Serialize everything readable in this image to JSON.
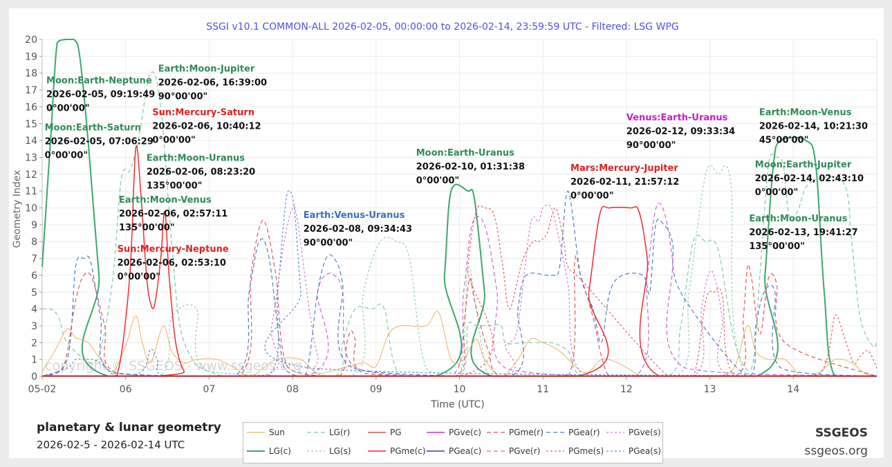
{
  "footer": {
    "title": "planetary & lunar geometry",
    "dates": "2026-02-5 - 2026-02-14 UTC",
    "brand": "SSGEOS",
    "site": "ssgeos.org"
  },
  "watermark": "copyright © SSGEOS - www.ssgeos.org",
  "colors": {
    "Sun": "#f0b25c",
    "LG(c)": "#3aa76d",
    "LG(r)": "#7ecaa5",
    "LG(s)": "#8fd0b2",
    "PG": "#d9534f",
    "PGme(c)": "#ee2a2a",
    "PGve(c)": "#cc33cc",
    "PGea(c)": "#3a3ab0",
    "PGme(r)": "#e05555",
    "PGve(r)": "#cc66cc",
    "PGea(r)": "#4a7fbf",
    "PGme(s)": "#e06060",
    "PGve(s)": "#d47ad4",
    "PGea(s)": "#5a8ed0"
  },
  "chart_data": {
    "type": "line",
    "title": "SSGI v10.1 COMMON-ALL 2026-02-05, 00:00:00 to 2026-02-14, 23:59:59 UTC - Filtered: LSG WPG",
    "xlabel": "Time (UTC)",
    "ylabel": "Geometry Index",
    "xlim": [
      5,
      15
    ],
    "ylim": [
      0,
      20
    ],
    "x_ticks": [
      {
        "v": 5,
        "label": "05-02"
      },
      {
        "v": 6,
        "label": "06"
      },
      {
        "v": 7,
        "label": "07"
      },
      {
        "v": 8,
        "label": "08"
      },
      {
        "v": 9,
        "label": "09"
      },
      {
        "v": 10,
        "label": "10"
      },
      {
        "v": 11,
        "label": "11"
      },
      {
        "v": 12,
        "label": "12"
      },
      {
        "v": 13,
        "label": "13"
      },
      {
        "v": 14,
        "label": "14"
      }
    ],
    "y_ticks": [
      0,
      1,
      2,
      3,
      4,
      5,
      6,
      7,
      8,
      9,
      10,
      11,
      12,
      13,
      14,
      15,
      16,
      17,
      18,
      19,
      20
    ],
    "grid": true,
    "legend_position": "bottom",
    "legend": [
      "Sun",
      "LG(r)",
      "PG",
      "PGve(c)",
      "PGme(r)",
      "PGea(r)",
      "PGve(s)",
      "LG(c)",
      "LG(s)",
      "PGme(c)",
      "PGea(c)",
      "PGve(r)",
      "PGme(s)",
      "PGea(s)"
    ],
    "series": [
      {
        "name": "LG(c)",
        "dash": "",
        "width": 2,
        "x": [
          5.0,
          5.1,
          5.18,
          5.28,
          5.38,
          5.45,
          5.55,
          5.68,
          5.8,
          9.7,
          9.82,
          9.9,
          10.1,
          10.18,
          10.3,
          10.4,
          13.55,
          13.66,
          13.76,
          13.85,
          14.15,
          14.27,
          14.37,
          14.5,
          15.0
        ],
        "y": [
          6.5,
          14,
          19.8,
          20,
          20,
          19,
          14,
          6,
          0,
          0,
          6,
          11,
          11,
          10.5,
          5,
          0,
          0,
          6,
          12.5,
          14,
          14,
          12.5,
          5,
          0,
          0
        ]
      },
      {
        "name": "LG(r)",
        "dash": "6,4",
        "width": 1.2,
        "x": [
          5.0,
          5.1,
          5.2,
          5.3,
          5.6,
          5.72,
          5.85,
          5.95,
          6.05,
          6.15,
          6.3,
          6.42,
          6.55,
          6.65,
          6.8,
          6.9,
          7.05,
          7.2,
          7.5,
          8.5,
          8.6,
          8.75,
          8.95,
          9.1,
          9.3,
          10.0,
          10.1,
          10.2,
          10.35,
          10.5,
          10.55,
          10.75,
          10.95,
          11.1,
          11.3,
          11.5,
          12.5,
          12.65,
          12.8,
          12.95,
          13.1,
          13.3,
          13.5,
          13.6,
          13.7,
          13.8,
          13.88,
          13.95,
          14.05,
          14.2,
          14.6,
          14.7,
          14.8,
          14.95,
          15.0
        ],
        "y": [
          4,
          4,
          3.5,
          2.0,
          0.8,
          2.0,
          6,
          11.8,
          12.2,
          14,
          18,
          16,
          8,
          3.0,
          1.0,
          0.5,
          0.2,
          0.0,
          0.0,
          0,
          2,
          4,
          4,
          4,
          0,
          0,
          3,
          3,
          3,
          3,
          2,
          2,
          2,
          2,
          1.5,
          0,
          0,
          3,
          8,
          8,
          7.5,
          2.0,
          0.5,
          6,
          12.5,
          13,
          12.5,
          9.5,
          9.8,
          11.5,
          11.5,
          8.0,
          3.5,
          1.8,
          2.0
        ]
      },
      {
        "name": "LG(s)",
        "dash": "3,3",
        "width": 1.2,
        "x": [
          5.0,
          5.3,
          6.4,
          6.55,
          6.85,
          7.0,
          8.7,
          8.85,
          9.05,
          9.25,
          9.4,
          9.6,
          10.0,
          10.1,
          10.2,
          10.35,
          10.6,
          10.9,
          11.2,
          12.6,
          12.75,
          12.95,
          13.1,
          13.25,
          13.45,
          15.0
        ],
        "y": [
          0,
          0,
          0,
          3.5,
          4,
          0.3,
          0,
          5,
          8,
          8,
          7,
          0.5,
          0,
          6.4,
          4,
          0,
          0,
          0,
          0,
          0,
          5,
          12,
          12,
          11.5,
          0,
          0
        ]
      },
      {
        "name": "Sun",
        "dash": "",
        "width": 1,
        "x": [
          5.0,
          5.15,
          5.3,
          5.4,
          5.55,
          5.7,
          5.85,
          6.0,
          6.12,
          6.2,
          6.3,
          6.45,
          6.55,
          6.7,
          6.85,
          7.1,
          7.3,
          7.5,
          7.8,
          8.1,
          8.3,
          8.6,
          8.85,
          9.0,
          9.15,
          9.3,
          9.6,
          9.75,
          9.9,
          10.05,
          10.2,
          10.3,
          10.5,
          10.7,
          10.85,
          11.0,
          11.2,
          11.5,
          11.7,
          11.9,
          12.2,
          12.5,
          12.8,
          13.1,
          13.3,
          13.45,
          13.55,
          13.7,
          13.9,
          14.1,
          14.3,
          14.5,
          14.7,
          14.85,
          15.0
        ],
        "y": [
          0.3,
          1.5,
          2.8,
          2.3,
          2.0,
          1.0,
          0.3,
          1.8,
          3.6,
          2.0,
          0.8,
          3.0,
          1.5,
          0.8,
          1.0,
          1.0,
          0.5,
          0.0,
          1.0,
          1.0,
          0.2,
          0.5,
          0.8,
          0.6,
          2.5,
          3.0,
          3.0,
          3.8,
          1.0,
          1.0,
          2.2,
          1.0,
          0.0,
          1.0,
          2.2,
          2.0,
          1.5,
          0.2,
          1.0,
          0.8,
          0.0,
          0.0,
          0.0,
          0.0,
          0.6,
          3.0,
          1.5,
          1.0,
          1.0,
          0.0,
          0.2,
          1.0,
          0.8,
          0.2,
          0.0
        ]
      },
      {
        "name": "PGme(c)",
        "dash": "",
        "width": 1.5,
        "x": [
          5.0,
          5.8,
          5.92,
          6.05,
          6.12,
          6.18,
          6.25,
          6.3,
          6.35,
          6.42,
          6.47,
          6.52,
          6.6,
          6.7,
          6.8,
          11.4,
          11.55,
          11.68,
          11.8,
          12.05,
          12.15,
          12.25,
          12.4,
          15.0
        ],
        "y": [
          0,
          0,
          0.5,
          6,
          13.5,
          11,
          6,
          4.3,
          4.3,
          7,
          9.8,
          6,
          2.0,
          0.3,
          0,
          0,
          5,
          9.6,
          10,
          10,
          9.8,
          7,
          0,
          0
        ]
      },
      {
        "name": "PGme(r)",
        "dash": "6,4",
        "width": 1.2,
        "x": [
          5.0,
          5.25,
          5.4,
          5.5,
          5.6,
          5.75,
          5.9,
          7.35,
          7.5,
          7.6,
          7.68,
          7.8,
          7.95,
          8.55,
          8.65,
          8.7,
          8.75,
          8.85,
          9.95,
          10.05,
          10.12,
          10.18,
          10.28,
          10.35,
          10.5,
          11.3,
          11.38,
          11.45,
          11.6,
          11.7,
          11.8,
          12.0,
          13.3,
          13.4,
          13.45,
          13.5,
          13.6,
          13.7,
          13.8,
          13.9,
          15.0
        ],
        "y": [
          0,
          0.5,
          4.5,
          6,
          5.8,
          3.0,
          0.2,
          0.0,
          6,
          8.8,
          9,
          6,
          0.5,
          0,
          2.0,
          2.7,
          2.2,
          0.2,
          0,
          3.0,
          5.8,
          4.5,
          2.5,
          1.5,
          0,
          0,
          6.8,
          6.0,
          3.5,
          1.2,
          0,
          0,
          0,
          3.5,
          6.5,
          5.8,
          2.5,
          5.8,
          5.5,
          2.0,
          0
        ]
      },
      {
        "name": "PGme(s)",
        "dash": "3,3",
        "width": 1.2,
        "x": [
          5.0,
          10.0,
          10.1,
          10.2,
          10.3,
          10.42,
          10.52,
          10.6,
          10.75,
          10.88,
          10.95,
          11.05,
          11.15,
          11.25,
          11.3,
          11.5,
          12.5,
          12.8,
          12.95,
          13.05,
          13.15,
          13.3,
          14.2,
          14.4,
          14.5,
          14.6,
          14.72,
          14.8,
          14.9,
          15.0
        ],
        "y": [
          0,
          0,
          6.5,
          9.8,
          10,
          9.5,
          6.5,
          4.0,
          6.8,
          8,
          8,
          8.5,
          10,
          8,
          6.5,
          5.5,
          0,
          0,
          4.5,
          5,
          4.8,
          0,
          0,
          1.0,
          3.6,
          2.5,
          0.8,
          1.2,
          1.5,
          0.5
        ]
      },
      {
        "name": "PGve(r)",
        "dash": "6,4",
        "width": 1.2,
        "x": [
          5.0,
          8.15,
          8.3,
          8.4,
          8.5,
          8.6,
          8.75,
          9.9,
          10.05,
          10.15,
          10.3,
          10.45,
          10.55,
          12.1,
          12.25,
          12.35,
          12.45,
          12.55,
          12.7,
          15.0
        ],
        "y": [
          0,
          0,
          5,
          6,
          6,
          5,
          0.5,
          0,
          5,
          9,
          9,
          5,
          0.5,
          0,
          6,
          9.9,
          9.8,
          7,
          0.5,
          0
        ]
      },
      {
        "name": "PGve(s)",
        "dash": "3,3",
        "width": 1.2,
        "x": [
          5.0,
          7.6,
          7.75,
          7.9,
          8.0,
          8.05,
          8.12,
          8.2,
          8.3,
          8.45,
          10.5,
          10.55,
          10.6,
          10.7,
          10.85,
          10.95,
          11.0,
          11.1,
          11.2,
          11.3,
          11.5,
          12.8,
          12.9,
          12.98,
          13.05,
          13.15,
          13.25,
          15.0
        ],
        "y": [
          0,
          0,
          3,
          8,
          10,
          9.5,
          7,
          4,
          1.2,
          0,
          0,
          1.8,
          2.0,
          3.0,
          9.0,
          9.2,
          10,
          10,
          8,
          5.5,
          0,
          0,
          4,
          6,
          6,
          3.5,
          0,
          0
        ]
      },
      {
        "name": "PGea(r)",
        "dash": "6,4",
        "width": 1.2,
        "x": [
          5.0,
          5.3,
          5.4,
          5.5,
          5.58,
          5.7,
          5.85,
          7.3,
          7.48,
          7.6,
          7.72,
          7.9,
          8.15,
          8.3,
          8.4,
          8.5,
          8.6,
          8.72,
          10.6,
          10.7,
          10.8,
          11.1,
          11.2,
          11.3,
          11.45,
          11.6,
          11.7,
          11.8,
          11.95,
          12.2,
          12.28,
          12.35,
          12.45,
          12.55,
          12.65,
          13.45,
          13.55,
          13.65,
          13.78,
          13.85,
          15.0
        ],
        "y": [
          0,
          1.0,
          6.5,
          7,
          6.8,
          3.5,
          0.2,
          0,
          5,
          8,
          7,
          0.5,
          0,
          5,
          7,
          7,
          5.5,
          0.5,
          0,
          4,
          6,
          6,
          6.5,
          11,
          6,
          4,
          2.0,
          5,
          6,
          6,
          5,
          9,
          9,
          8,
          5,
          0,
          3,
          5,
          5,
          0.5,
          0
        ]
      },
      {
        "name": "PGea(s)",
        "dash": "3,3",
        "width": 1.2,
        "x": [
          5.0,
          5.3,
          5.4,
          5.5,
          5.6,
          5.7,
          5.9,
          6.2,
          6.3,
          6.38,
          6.5,
          7.7,
          7.82,
          7.9,
          7.95,
          8.02,
          8.1,
          8.2,
          15.0
        ],
        "y": [
          0,
          0.5,
          1.0,
          1.0,
          1.0,
          0.8,
          0,
          0.3,
          1.6,
          1.0,
          0,
          0,
          5,
          9.5,
          11,
          10,
          5,
          0.5,
          0
        ]
      },
      {
        "name": "PGve(c)",
        "dash": "",
        "width": 1.5,
        "x": [
          5.0,
          15.0
        ],
        "y": [
          0.02,
          0.02
        ]
      },
      {
        "name": "PGea(c)",
        "dash": "",
        "width": 1.5,
        "x": [
          5.0,
          15.0
        ],
        "y": [
          0.03,
          0.03
        ]
      },
      {
        "name": "PG",
        "dash": "",
        "width": 1.5,
        "x": [
          5.0,
          15.0
        ],
        "y": [
          0.0,
          0.0
        ]
      }
    ],
    "annotations": [
      {
        "color": "#2e8b57",
        "lines": [
          "Moon:Earth-Neptune",
          "2026-02-05, 09:19:49",
          "0°00'00\""
        ],
        "x": 5.05,
        "y": 17.4
      },
      {
        "color": "#2e8b57",
        "lines": [
          "Moon:Earth-Saturn",
          "2026-02-05, 07:06:29",
          "0°00'00\""
        ],
        "x": 5.03,
        "y": 14.6
      },
      {
        "color": "#2e8b57",
        "lines": [
          "Earth:Moon-Jupiter",
          "2026-02-06, 16:39:00",
          "90°00'00\""
        ],
        "x": 6.39,
        "y": 18.1
      },
      {
        "color": "#e02020",
        "lines": [
          "Sun:Mercury-Saturn",
          "2026-02-06, 10:40:12",
          "0°00'00\""
        ],
        "x": 6.32,
        "y": 15.5
      },
      {
        "color": "#2e8b57",
        "lines": [
          "Earth:Moon-Uranus",
          "2026-02-06, 08:23:20",
          "135°00'00\""
        ],
        "x": 6.25,
        "y": 12.8
      },
      {
        "color": "#2e8b57",
        "lines": [
          "Earth:Moon-Venus",
          "2026-02-06, 02:57:11",
          "135°00'00\""
        ],
        "x": 5.92,
        "y": 10.3
      },
      {
        "color": "#e02020",
        "lines": [
          "Sun:Mercury-Neptune",
          "2026-02-06, 02:53:10",
          "0°00'00\""
        ],
        "x": 5.9,
        "y": 7.4
      },
      {
        "color": "#3c6fb5",
        "lines": [
          "Earth:Venus-Uranus",
          "2026-02-08, 09:34:43",
          "90°00'00\""
        ],
        "x": 8.13,
        "y": 9.4
      },
      {
        "color": "#2e8b57",
        "lines": [
          "Moon:Earth-Uranus",
          "2026-02-10, 01:31:38",
          "0°00'00\""
        ],
        "x": 9.48,
        "y": 13.1
      },
      {
        "color": "#e02020",
        "lines": [
          "Mars:Mercury-Jupiter",
          "2026-02-11, 21:57:12",
          "0°00'00\""
        ],
        "x": 11.33,
        "y": 12.2
      },
      {
        "color": "#c71fc7",
        "lines": [
          "Venus:Earth-Uranus",
          "2026-02-12, 09:33:34",
          "90°00'00\""
        ],
        "x": 12.0,
        "y": 15.2
      },
      {
        "color": "#2e8b57",
        "lines": [
          "Earth:Moon-Venus",
          "2026-02-14, 10:21:30",
          "45°00'00\""
        ],
        "x": 13.59,
        "y": 15.5
      },
      {
        "color": "#2e8b57",
        "lines": [
          "Moon:Earth-Jupiter",
          "2026-02-14, 02:43:10",
          "0°00'00\""
        ],
        "x": 13.54,
        "y": 12.4
      },
      {
        "color": "#2e8b57",
        "lines": [
          "Earth:Moon-Uranus",
          "2026-02-13, 19:41:27",
          "135°00'00\""
        ],
        "x": 13.47,
        "y": 9.2
      }
    ]
  }
}
